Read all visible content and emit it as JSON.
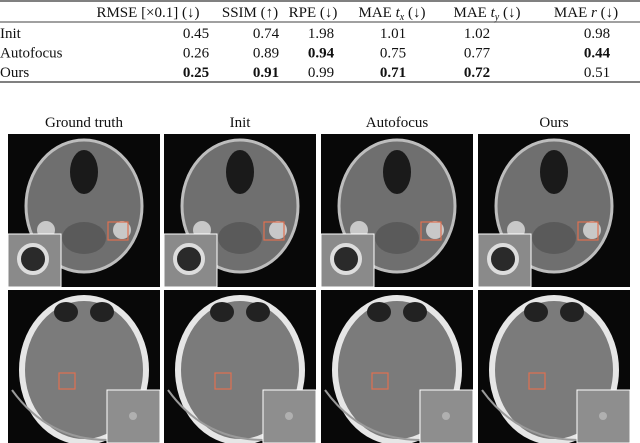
{
  "table": {
    "header": [
      "RMSE [×0.1] (↓)",
      "SSIM (↑)",
      "RPE (↓)",
      {
        "main": "MAE ",
        "var": "t",
        "sub": "x",
        "post": " (↓)"
      },
      {
        "main": "MAE ",
        "var": "t",
        "sub": "y",
        "post": " (↓)"
      },
      {
        "main": "MAE ",
        "var": "r",
        "post": " (↓)"
      }
    ],
    "rows": [
      {
        "label": "Init",
        "cells": [
          {
            "text": "0.45"
          },
          {
            "text": "0.74"
          },
          {
            "text": "1.98"
          },
          {
            "text": "1.01"
          },
          {
            "text": "1.02"
          },
          {
            "text": "0.98"
          }
        ]
      },
      {
        "label": "Autofocus",
        "cells": [
          {
            "text": "0.26"
          },
          {
            "text": "0.89"
          },
          {
            "text": "0.94",
            "bold": true
          },
          {
            "text": "0.75"
          },
          {
            "text": "0.77"
          },
          {
            "text": "0.44",
            "bold": true
          }
        ]
      },
      {
        "label": "Ours",
        "cells": [
          {
            "text": "0.25",
            "bold": true
          },
          {
            "text": "0.91",
            "bold": true
          },
          {
            "text": "0.99"
          },
          {
            "text": "0.71",
            "bold": true
          },
          {
            "text": "0.72",
            "bold": true
          },
          {
            "text": "0.51"
          }
        ]
      }
    ]
  },
  "figure": {
    "column_titles": [
      "Ground truth",
      "Init",
      "Autofocus",
      "Ours"
    ]
  }
}
